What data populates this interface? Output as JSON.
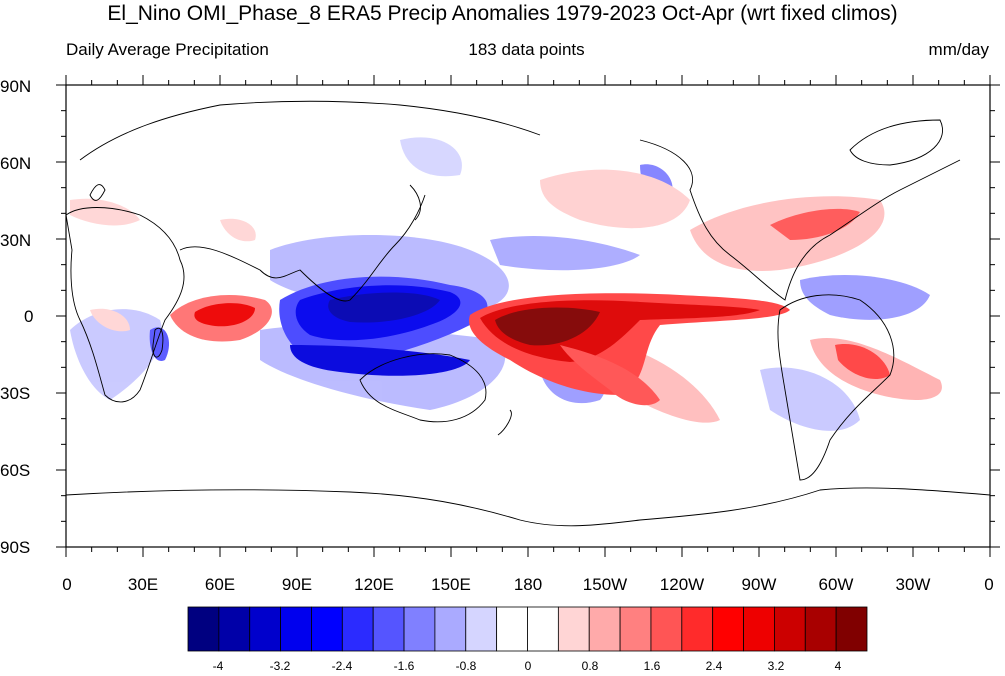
{
  "title": "El_Nino OMI_Phase_8 ERA5 Precip Anomalies 1979-2023 Oct-Apr (wrt fixed climos)",
  "subtitle_left": "Daily Average Precipitation",
  "subtitle_center": "183 data points",
  "subtitle_right": "mm/day",
  "lat_labels": [
    "90N",
    "60N",
    "30N",
    "0",
    "30S",
    "60S",
    "90S"
  ],
  "lon_labels": [
    "0",
    "30E",
    "60E",
    "90E",
    "120E",
    "150E",
    "180",
    "150W",
    "120W",
    "90W",
    "60W",
    "30W",
    "0"
  ],
  "colorbar": {
    "colors": [
      "#000080",
      "#0000a8",
      "#0000cc",
      "#0000ee",
      "#0000ff",
      "#2b2bff",
      "#5555ff",
      "#8080ff",
      "#aaaaff",
      "#d5d5ff",
      "#ffffff",
      "#ffffff",
      "#ffd5d5",
      "#ffaaaa",
      "#ff8080",
      "#ff5555",
      "#ff2b2b",
      "#ff0000",
      "#ee0000",
      "#cc0000",
      "#a80000",
      "#800000"
    ],
    "tick_labels": [
      "-4",
      "-3.2",
      "-2.4",
      "-1.6",
      "-0.8",
      "0",
      "0.8",
      "1.6",
      "2.4",
      "3.2",
      "4"
    ]
  }
}
